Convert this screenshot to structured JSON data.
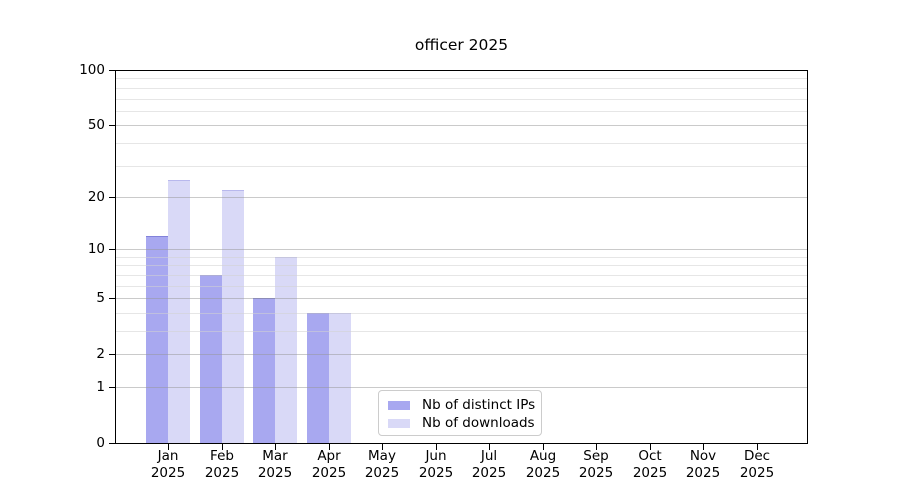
{
  "page_title": "officer 2025",
  "chart_data": {
    "type": "bar",
    "title": "officer 2025",
    "categories": [
      "Jan",
      "Feb",
      "Mar",
      "Apr",
      "May",
      "Jun",
      "Jul",
      "Aug",
      "Sep",
      "Oct",
      "Nov",
      "Dec"
    ],
    "category_year": "2025",
    "series": [
      {
        "name": "Nb of distinct IPs",
        "color": "#a8a8f0",
        "values": [
          12,
          7,
          5,
          4,
          0,
          0,
          0,
          0,
          0,
          0,
          0,
          0
        ]
      },
      {
        "name": "Nb of downloads",
        "color": "#d9d9f7",
        "values": [
          25,
          22,
          9,
          4,
          0,
          0,
          0,
          0,
          0,
          0,
          0,
          0
        ]
      }
    ],
    "xlabel": "",
    "ylabel": "",
    "y_scale": "log10(1+v)",
    "ylim": [
      0,
      100
    ],
    "y_ticks": [
      0,
      1,
      2,
      5,
      10,
      20,
      50,
      100
    ],
    "y_minor_ticks": [
      3,
      4,
      6,
      7,
      8,
      9,
      30,
      40,
      60,
      70,
      80,
      90
    ],
    "grid": "horizontal, major and minor, drawn over bars",
    "legend_position": "bottom-center",
    "colors": {
      "background": "#ffffff",
      "spine": "#000000",
      "grid_major": "#c8c8c8",
      "grid_minor": "#e8e8e8",
      "legend_border": "#cccccc",
      "text": "#000000"
    }
  }
}
